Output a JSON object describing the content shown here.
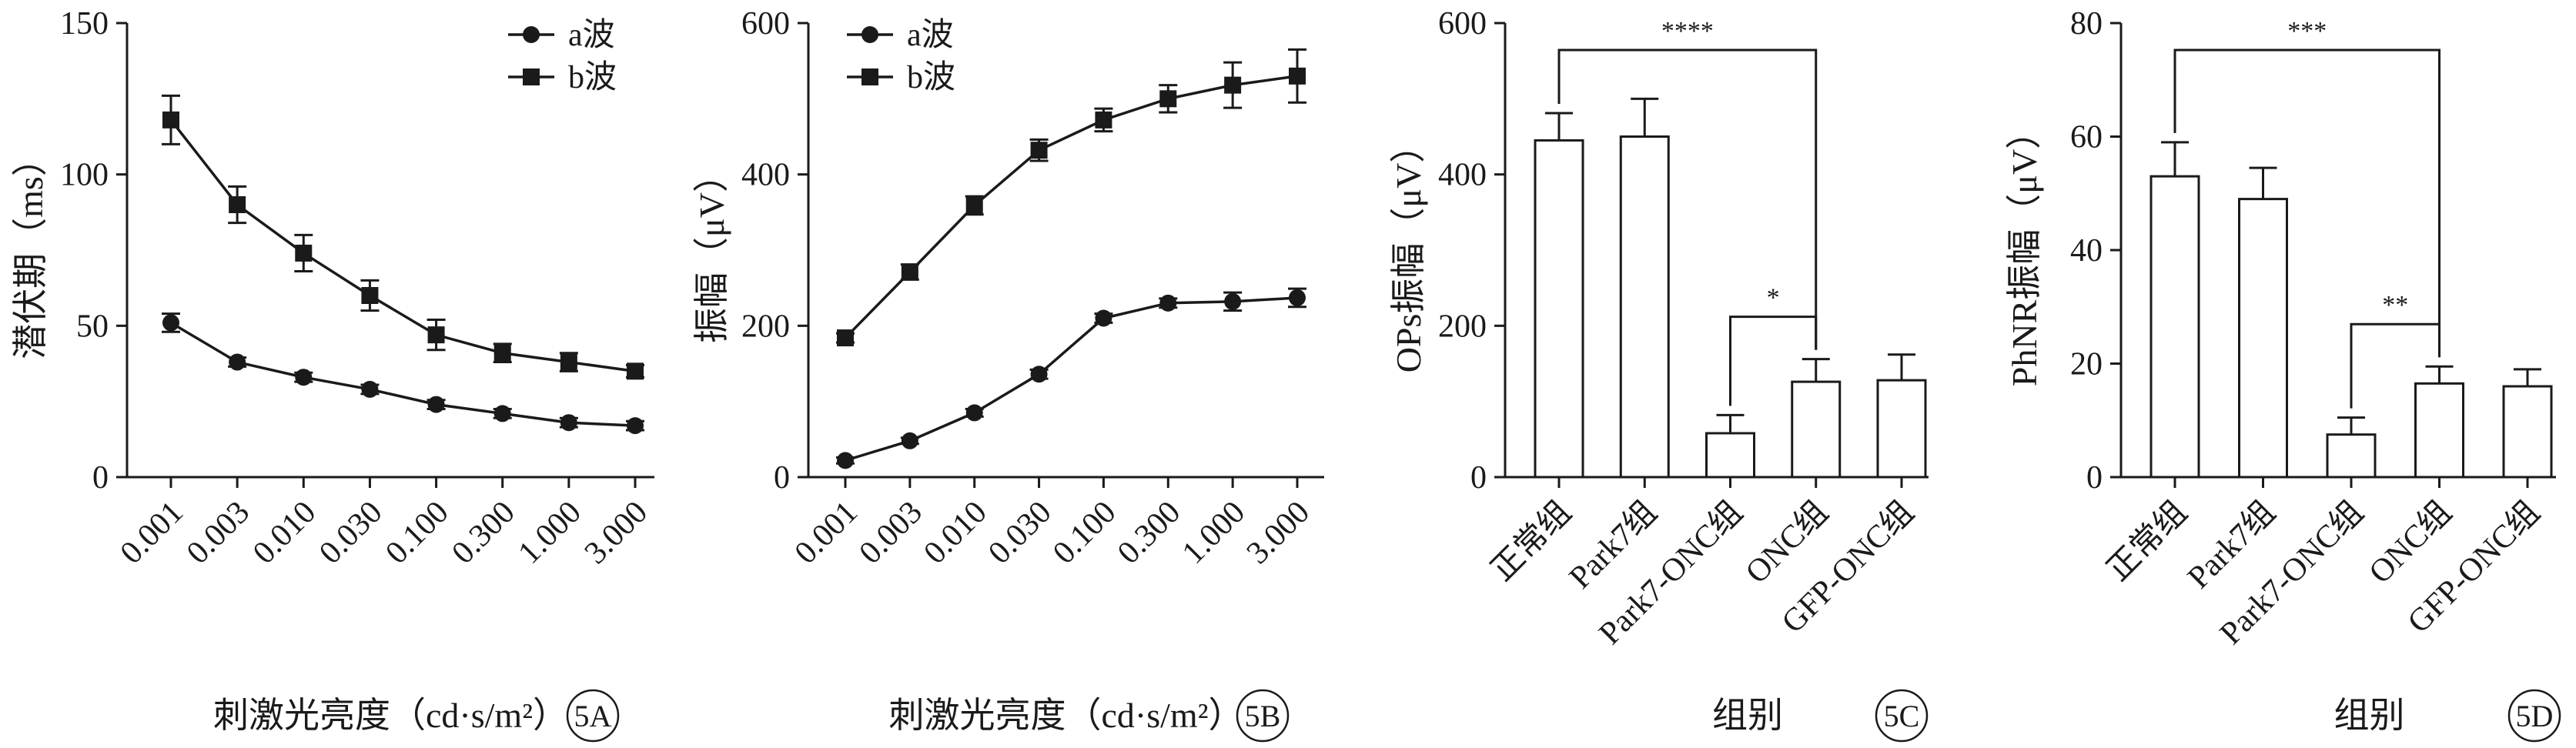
{
  "chart_data": [
    {
      "panel": "5A",
      "type": "line",
      "ylabel": "潜伏期（ms）",
      "xlabel": "刺激光亮度（cd·s/m²）",
      "ylim": [
        0,
        150
      ],
      "yticks": [
        0,
        50,
        100,
        150
      ],
      "categories": [
        "0.001",
        "0.003",
        "0.010",
        "0.030",
        "0.100",
        "0.300",
        "1.000",
        "3.000"
      ],
      "series": [
        {
          "name": "a波",
          "marker": "circle",
          "values": [
            51,
            38,
            33,
            29,
            24,
            21,
            18,
            17
          ],
          "errors": [
            3,
            1.5,
            1.5,
            1.5,
            1.5,
            1.5,
            1.5,
            1.5
          ]
        },
        {
          "name": "b波",
          "marker": "square",
          "values": [
            118,
            90,
            74,
            60,
            47,
            41,
            38,
            35
          ],
          "errors": [
            8,
            6,
            6,
            5,
            5,
            3,
            3,
            2
          ]
        }
      ],
      "legend_position": "top-right"
    },
    {
      "panel": "5B",
      "type": "line",
      "ylabel": "振幅（μV）",
      "xlabel": "刺激光亮度（cd·s/m²）",
      "ylim": [
        0,
        600
      ],
      "yticks": [
        0,
        200,
        400,
        600
      ],
      "categories": [
        "0.001",
        "0.003",
        "0.010",
        "0.030",
        "0.100",
        "0.300",
        "1.000",
        "3.000"
      ],
      "series": [
        {
          "name": "a波",
          "marker": "circle",
          "values": [
            22,
            48,
            85,
            136,
            210,
            230,
            232,
            237
          ],
          "errors": [
            4,
            4,
            5,
            6,
            6,
            6,
            12,
            12
          ]
        },
        {
          "name": "b波",
          "marker": "square",
          "values": [
            184,
            271,
            359,
            432,
            472,
            500,
            518,
            530
          ],
          "errors": [
            6,
            10,
            12,
            14,
            15,
            18,
            30,
            35
          ]
        }
      ],
      "legend_position": "top-left"
    },
    {
      "panel": "5C",
      "type": "bar",
      "ylabel": "OPs振幅（μV）",
      "xlabel": "组别",
      "ylim": [
        0,
        600
      ],
      "yticks": [
        0,
        200,
        400,
        600
      ],
      "categories": [
        "正常组",
        "Park7组",
        "Park7-ONC组",
        "ONC组",
        "GFP-ONC组"
      ],
      "values": [
        445,
        450,
        58,
        126,
        128
      ],
      "errors": [
        36,
        50,
        24,
        30,
        34
      ],
      "significance": [
        {
          "from": 0,
          "to": 3,
          "label": "****"
        },
        {
          "from": 2,
          "to": 3,
          "label": "*"
        }
      ]
    },
    {
      "panel": "5D",
      "type": "bar",
      "ylabel": "PhNR振幅（μV）",
      "xlabel": "组别",
      "ylim": [
        0,
        80
      ],
      "yticks": [
        0,
        20,
        40,
        60,
        80
      ],
      "categories": [
        "正常组",
        "Park7组",
        "Park7-ONC组",
        "ONC组",
        "GFP-ONC组"
      ],
      "values": [
        53,
        49,
        7.5,
        16.5,
        16
      ],
      "errors": [
        6,
        5.5,
        3,
        3,
        3
      ],
      "significance": [
        {
          "from": 0,
          "to": 3,
          "label": "***"
        },
        {
          "from": 2,
          "to": 3,
          "label": "**"
        }
      ]
    }
  ]
}
